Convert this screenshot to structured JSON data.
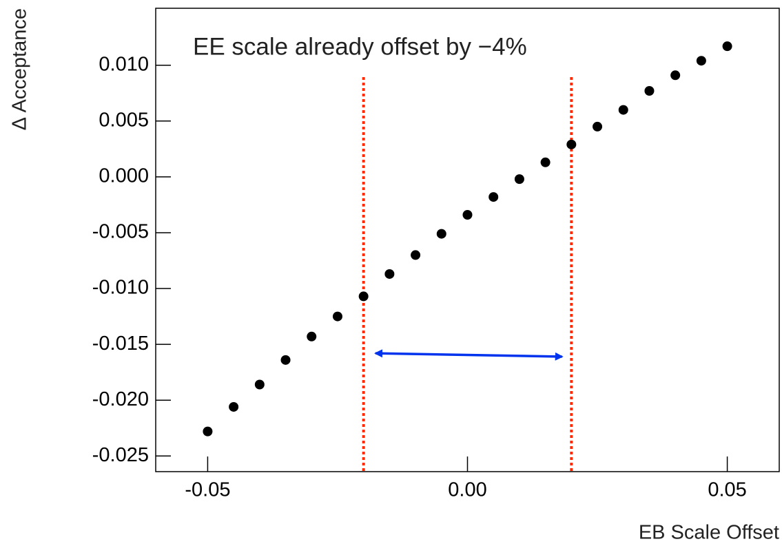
{
  "chart_data": {
    "type": "scatter",
    "annotation": "EE scale already offset by −4%",
    "x_label": "EB Scale Offset",
    "y_label": "Δ Acceptance",
    "x": [
      -0.05,
      -0.045,
      -0.04,
      -0.035,
      -0.03,
      -0.025,
      -0.02,
      -0.015,
      -0.01,
      -0.005,
      0,
      0.005,
      0.01,
      0.015,
      0.02,
      0.025,
      0.03,
      0.035,
      0.04,
      0.045,
      0.05
    ],
    "values": [
      -0.0228,
      -0.0206,
      -0.0186,
      -0.0164,
      -0.0143,
      -0.0125,
      -0.0107,
      -0.0087,
      -0.007,
      -0.0051,
      -0.0034,
      -0.0018,
      -0.0002,
      0.0013,
      0.0029,
      0.0045,
      0.006,
      0.0077,
      0.0091,
      0.0104,
      0.0117
    ],
    "color": "#000000",
    "xlim": [
      -0.06,
      0.06
    ],
    "ylim": [
      -0.0264,
      0.0151
    ],
    "xticks": [
      -0.05,
      {
        "value": 0,
        "label": "0.00"
      },
      0.05
    ],
    "yticks": [
      {
        "value": -0.025,
        "label": "-0.025"
      },
      {
        "value": -0.02,
        "label": "-0.020"
      },
      {
        "value": -0.015,
        "label": "-0.015"
      },
      {
        "value": -0.01,
        "label": "-0.010"
      },
      {
        "value": -0.005,
        "label": "-0.005"
      },
      {
        "value": 0,
        "label": "0.000"
      },
      {
        "value": 0.005,
        "label": "0.005"
      },
      {
        "value": 0.01,
        "label": "0.010"
      }
    ],
    "grid": false,
    "vlines": {
      "x": [
        -0.02,
        0.02
      ],
      "color": "#ff2a00"
    },
    "arrow": {
      "x": [
        -0.0177,
        0.0182
      ],
      "y": [
        -0.0158,
        -0.0161
      ],
      "color": "#0033ee"
    }
  }
}
